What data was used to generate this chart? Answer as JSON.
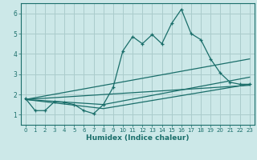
{
  "xlabel": "Humidex (Indice chaleur)",
  "bg_color": "#cce8e8",
  "grid_color": "#aacccc",
  "line_color": "#1a6e6a",
  "xlim": [
    -0.5,
    23.5
  ],
  "ylim": [
    0.5,
    6.5
  ],
  "x_ticks": [
    0,
    1,
    2,
    3,
    4,
    5,
    6,
    7,
    8,
    9,
    10,
    11,
    12,
    13,
    14,
    15,
    16,
    17,
    18,
    19,
    20,
    21,
    22,
    23
  ],
  "y_ticks": [
    1,
    2,
    3,
    4,
    5,
    6
  ],
  "main_line_x": [
    0,
    1,
    2,
    3,
    4,
    5,
    6,
    7,
    8,
    9,
    10,
    11,
    12,
    13,
    14,
    15,
    16,
    17,
    18,
    19,
    20,
    21,
    22,
    23
  ],
  "main_line_y": [
    1.8,
    1.2,
    1.2,
    1.65,
    1.6,
    1.5,
    1.2,
    1.05,
    1.5,
    2.35,
    4.15,
    4.85,
    4.5,
    4.95,
    4.5,
    5.5,
    6.2,
    5.0,
    4.7,
    3.75,
    3.05,
    2.6,
    2.5,
    2.5
  ],
  "trend1_x": [
    0,
    23
  ],
  "trend1_y": [
    1.75,
    3.75
  ],
  "trend2_x": [
    0,
    23
  ],
  "trend2_y": [
    1.75,
    2.45
  ],
  "trend3_x": [
    0,
    8,
    23
  ],
  "trend3_y": [
    1.75,
    1.3,
    2.5
  ],
  "trend4_x": [
    0,
    8,
    23
  ],
  "trend4_y": [
    1.75,
    1.5,
    2.85
  ]
}
